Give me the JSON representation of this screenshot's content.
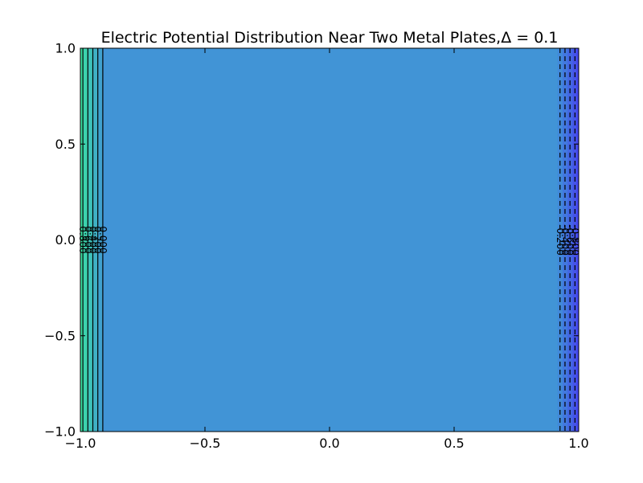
{
  "chart_data": {
    "type": "contour",
    "title": "Electric Potential Distribution Near Two Metal Plates,",
    "title_math": "Δ = 0.1",
    "xlabel": "",
    "ylabel": "",
    "xlim": [
      -1.0,
      1.0
    ],
    "ylim": [
      -1.0,
      1.0
    ],
    "xticks": [
      -1.0,
      -0.5,
      0.0,
      0.5,
      1.0
    ],
    "xtick_labels": [
      "−1.0",
      "−0.5",
      "0.0",
      "0.5",
      "1.0"
    ],
    "yticks": [
      -1.0,
      -0.5,
      0.0,
      0.5,
      1.0
    ],
    "ytick_labels": [
      "−1.0",
      "−0.5",
      "0.0",
      "0.5",
      "1.0"
    ],
    "grid": false,
    "plateau_color": "#4194d6",
    "bands": [
      {
        "x0": -1.0,
        "x1": -0.99,
        "color": "#3be3a3"
      },
      {
        "x0": -0.99,
        "x1": -0.97,
        "color": "#3cd2ae"
      },
      {
        "x0": -0.97,
        "x1": -0.95,
        "color": "#3dc1b9"
      },
      {
        "x0": -0.95,
        "x1": -0.93,
        "color": "#3fb0c4"
      },
      {
        "x0": -0.93,
        "x1": -0.91,
        "color": "#40a1cf"
      },
      {
        "x0": 0.915,
        "x1": 0.935,
        "color": "#4189da"
      },
      {
        "x0": 0.935,
        "x1": 0.955,
        "color": "#4278df"
      },
      {
        "x0": 0.955,
        "x1": 0.975,
        "color": "#4366e4"
      },
      {
        "x0": 0.975,
        "x1": 0.99,
        "color": "#4554e9"
      },
      {
        "x0": 0.99,
        "x1": 1.0,
        "color": "#4648ee"
      }
    ],
    "left_contours": [
      {
        "x": -0.99,
        "label": "0.800"
      },
      {
        "x": -0.97,
        "label": "0.600"
      },
      {
        "x": -0.95,
        "label": "0.400"
      },
      {
        "x": -0.93,
        "label": "0.200"
      },
      {
        "x": -0.91,
        "label": "0.000"
      }
    ],
    "right_contours": [
      {
        "x": 0.925,
        "label": "-0.200"
      },
      {
        "x": 0.945,
        "label": "-0.400"
      },
      {
        "x": 0.965,
        "label": "-0.600"
      },
      {
        "x": 0.985,
        "label": "-0.800"
      }
    ],
    "label_y": 0.0
  }
}
